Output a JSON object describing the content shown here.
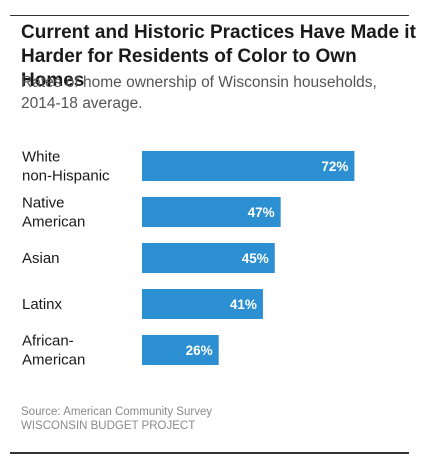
{
  "header": {
    "title": "Current and Historic Practices Have Made it Harder for Residents of Color to Own Homes",
    "subtitle": "Rates of home ownership of Wisconsin households, 2014-18 average."
  },
  "footer": {
    "source": "Source: American Community Survey",
    "credit": "WISCONSIN BUDGET PROJECT"
  },
  "colors": {
    "bar": "#2B8FD1",
    "bar_label": "#ffffff",
    "category_label": "#1a1a1a"
  },
  "chart_data": {
    "type": "bar",
    "orientation": "horizontal",
    "categories": [
      [
        "White",
        "non-Hispanic"
      ],
      [
        "Native",
        "American"
      ],
      [
        "Asian"
      ],
      [
        "Latinx"
      ],
      [
        "African-",
        "American"
      ]
    ],
    "values": [
      72,
      47,
      45,
      41,
      26
    ],
    "value_labels": [
      "72%",
      "47%",
      "45%",
      "41%",
      "26%"
    ],
    "unit": "%",
    "xlim": [
      0,
      100
    ],
    "grid": false,
    "legend": "none"
  }
}
